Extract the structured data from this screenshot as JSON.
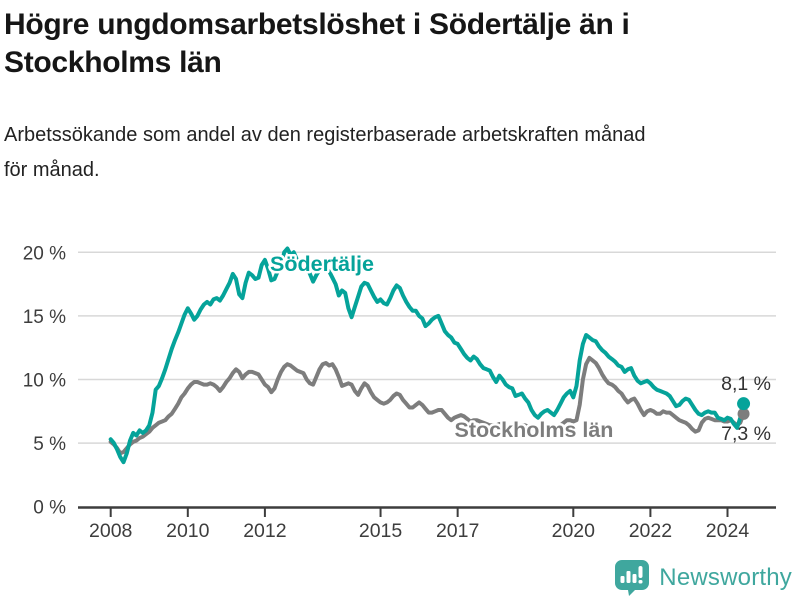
{
  "header": {
    "title_line1": "Högre ungdomsarbetslöshet i Södertälje än i",
    "title_line2": "Stockholms län",
    "subtitle_line1": "Arbetssökande som andel av den registerbaserade arbetskraften månad",
    "subtitle_line2": "för månad."
  },
  "footer": {
    "brand": "Newsworthy",
    "brand_color": "#3fa79e",
    "logo_icon": "bar-chart-pin-icon"
  },
  "colors": {
    "sodertalje": "#05a39a",
    "stockholm": "#7d7d7d",
    "gridline": "#d8d8d8",
    "axis": "#3d3d3d",
    "tick_text": "#3d3d3d",
    "annotation_text": "#333333"
  },
  "chart_data": {
    "type": "line",
    "title": "Högre ungdomsarbetslöshet i Södertälje än i Stockholms län",
    "subtitle": "Arbetssökande som andel av den registerbaserade arbetskraften månad för månad.",
    "unit": "%",
    "x_start_year": 2008,
    "x_interval": "monthly",
    "x_end": "2024-06",
    "ylim": [
      0,
      20
    ],
    "grid": "horizontal",
    "yticks": [
      {
        "value": 0,
        "label": "0 %"
      },
      {
        "value": 5,
        "label": "5 %"
      },
      {
        "value": 10,
        "label": "10 %"
      },
      {
        "value": 15,
        "label": "15 %"
      },
      {
        "value": 20,
        "label": "20 %"
      }
    ],
    "xticks": [
      {
        "year": 2008,
        "label": "2008"
      },
      {
        "year": 2010,
        "label": "2010"
      },
      {
        "year": 2012,
        "label": "2012"
      },
      {
        "year": 2015,
        "label": "2015"
      },
      {
        "year": 2017,
        "label": "2017"
      },
      {
        "year": 2020,
        "label": "2020"
      },
      {
        "year": 2022,
        "label": "2022"
      },
      {
        "year": 2024,
        "label": "2024"
      }
    ],
    "series": [
      {
        "name": "Södertälje",
        "color": "#05a39a",
        "end_value": 8.1,
        "end_label": "8,1 %",
        "values": [
          5.3,
          5.0,
          4.5,
          3.9,
          3.5,
          4.2,
          5.2,
          5.8,
          5.6,
          6.0,
          5.8,
          6.0,
          6.4,
          7.4,
          9.2,
          9.5,
          10.1,
          10.8,
          11.6,
          12.4,
          13.1,
          13.7,
          14.4,
          15.1,
          15.6,
          15.2,
          14.7,
          15.0,
          15.5,
          15.9,
          16.1,
          15.9,
          16.3,
          16.4,
          16.2,
          16.6,
          17.1,
          17.6,
          18.3,
          17.9,
          16.7,
          16.4,
          17.6,
          18.4,
          18.2,
          17.9,
          18.0,
          19.0,
          19.4,
          18.7,
          17.8,
          17.9,
          18.5,
          18.9,
          20.0,
          20.3,
          19.8,
          20.0,
          19.4,
          19.3,
          19.4,
          18.9,
          18.3,
          17.7,
          18.2,
          18.6,
          18.8,
          18.7,
          18.5,
          18.0,
          17.5,
          16.6,
          17.0,
          16.8,
          15.6,
          14.9,
          15.7,
          16.5,
          17.3,
          17.6,
          17.5,
          17.0,
          16.5,
          16.1,
          16.3,
          16.0,
          15.9,
          16.4,
          17.0,
          17.4,
          17.2,
          16.6,
          16.1,
          15.7,
          15.4,
          15.4,
          15.0,
          14.8,
          14.2,
          14.4,
          14.7,
          14.9,
          15.0,
          14.4,
          13.8,
          13.5,
          13.3,
          12.9,
          12.8,
          12.4,
          12.0,
          11.7,
          11.5,
          11.8,
          11.6,
          11.2,
          10.9,
          10.8,
          10.7,
          10.2,
          9.8,
          10.3,
          10.0,
          9.6,
          9.4,
          9.3,
          8.7,
          8.8,
          8.9,
          8.5,
          8.2,
          7.6,
          7.2,
          7.0,
          7.3,
          7.5,
          7.6,
          7.4,
          7.2,
          7.6,
          8.1,
          8.6,
          8.9,
          9.1,
          8.6,
          9.5,
          11.5,
          12.8,
          13.5,
          13.3,
          13.1,
          13.0,
          12.6,
          12.3,
          12.1,
          11.8,
          11.6,
          11.4,
          11.1,
          11.0,
          10.6,
          10.8,
          10.9,
          10.3,
          9.9,
          9.7,
          9.8,
          9.9,
          9.7,
          9.4,
          9.2,
          9.1,
          9.0,
          8.9,
          8.7,
          8.3,
          7.9,
          8.0,
          8.3,
          8.5,
          8.4,
          8.0,
          7.6,
          7.3,
          7.2,
          7.4,
          7.5,
          7.4,
          7.4,
          7.0,
          6.9,
          6.8,
          7.0,
          6.9,
          6.5,
          6.2,
          7.0,
          8.1
        ]
      },
      {
        "name": "Stockholms län",
        "color": "#7d7d7d",
        "end_value": 7.3,
        "end_label": "7,3 %",
        "values": [
          5.1,
          4.9,
          4.6,
          4.2,
          4.3,
          4.6,
          4.9,
          5.1,
          5.2,
          5.4,
          5.5,
          5.7,
          5.9,
          6.2,
          6.4,
          6.6,
          6.7,
          6.8,
          7.1,
          7.3,
          7.7,
          8.1,
          8.6,
          8.9,
          9.3,
          9.6,
          9.8,
          9.8,
          9.7,
          9.6,
          9.6,
          9.7,
          9.6,
          9.4,
          9.1,
          9.4,
          9.8,
          10.1,
          10.5,
          10.8,
          10.6,
          10.1,
          10.4,
          10.6,
          10.6,
          10.5,
          10.4,
          10.0,
          9.6,
          9.4,
          9.0,
          9.3,
          10.0,
          10.6,
          11.0,
          11.2,
          11.1,
          10.9,
          10.7,
          10.6,
          10.5,
          10.0,
          9.7,
          9.6,
          10.2,
          10.8,
          11.2,
          11.3,
          11.1,
          11.2,
          10.8,
          10.2,
          9.5,
          9.6,
          9.7,
          9.6,
          9.1,
          8.8,
          9.3,
          9.7,
          9.5,
          9.0,
          8.6,
          8.4,
          8.2,
          8.1,
          8.2,
          8.4,
          8.7,
          8.9,
          8.8,
          8.4,
          8.1,
          7.8,
          7.8,
          8.0,
          8.2,
          8.0,
          7.7,
          7.4,
          7.4,
          7.5,
          7.6,
          7.6,
          7.3,
          7.0,
          6.8,
          7.0,
          7.1,
          7.2,
          7.1,
          6.9,
          6.7,
          6.8,
          6.8,
          6.7,
          6.6,
          6.5,
          6.4,
          6.4,
          6.4,
          6.5,
          6.5,
          6.4,
          6.3,
          6.3,
          6.2,
          6.2,
          6.4,
          6.4,
          6.3,
          6.2,
          6.1,
          6.0,
          6.0,
          6.1,
          6.2,
          6.3,
          6.3,
          6.3,
          6.4,
          6.6,
          6.8,
          6.8,
          6.7,
          6.8,
          8.0,
          10.0,
          11.2,
          11.7,
          11.5,
          11.3,
          10.9,
          10.4,
          10.0,
          9.7,
          9.6,
          9.4,
          9.1,
          8.9,
          8.5,
          8.2,
          8.4,
          8.5,
          8.1,
          7.6,
          7.2,
          7.5,
          7.6,
          7.5,
          7.3,
          7.3,
          7.5,
          7.4,
          7.4,
          7.2,
          7.0,
          6.8,
          6.7,
          6.6,
          6.4,
          6.1,
          5.9,
          6.0,
          6.6,
          6.9,
          7.0,
          6.9,
          6.8,
          6.8,
          6.8,
          6.7,
          6.7,
          6.8,
          6.6,
          6.4,
          6.6,
          7.3
        ]
      }
    ]
  }
}
